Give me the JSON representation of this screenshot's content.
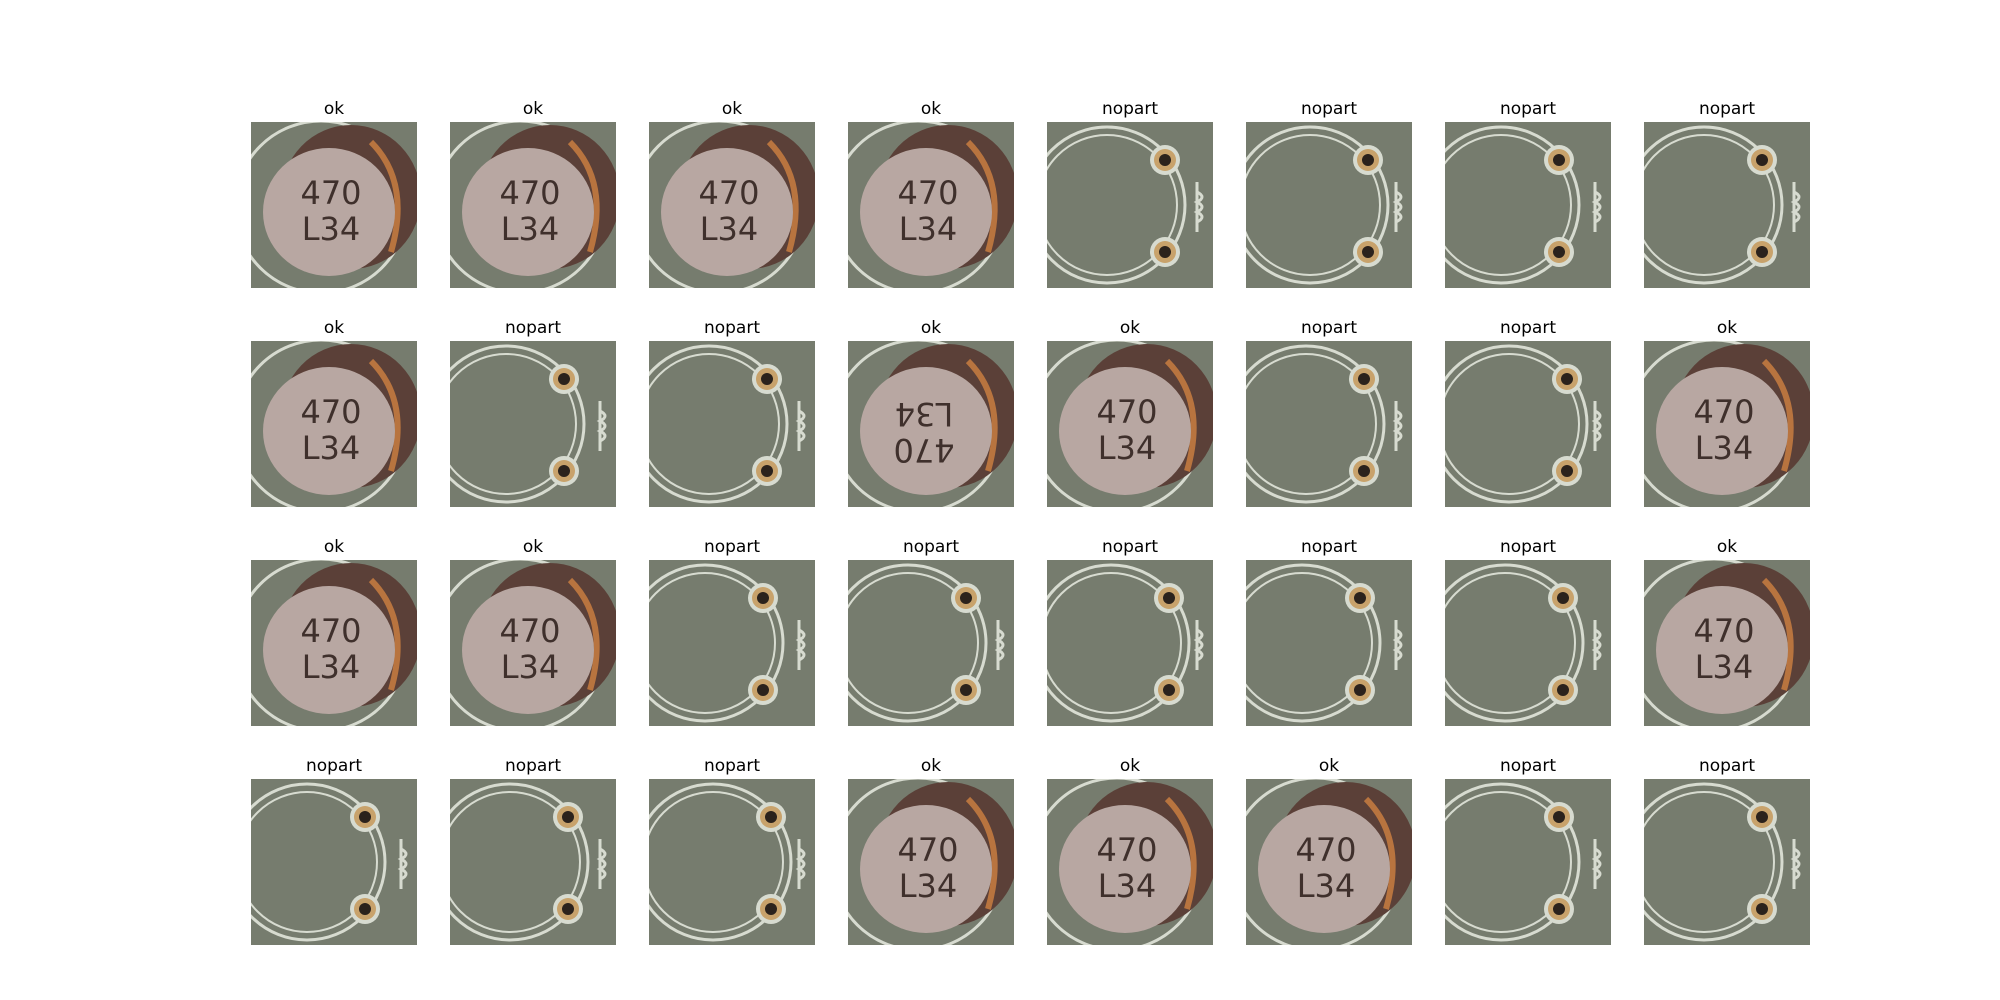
{
  "colors": {
    "board": "#7b8173",
    "board_dark": "#5e6558",
    "silk": "#d7dbd0",
    "cap_top": "#b8a7a2",
    "cap_shadow": "#5b4038",
    "copper": "#b8743f",
    "pad_ring": "#c8a26b",
    "pad_hole": "#2b221c",
    "marking": "#3f302c"
  },
  "marking": {
    "line1": "470",
    "line2": "L34"
  },
  "tiles": [
    {
      "label": "ok"
    },
    {
      "label": "ok"
    },
    {
      "label": "ok"
    },
    {
      "label": "ok"
    },
    {
      "label": "nopart"
    },
    {
      "label": "nopart"
    },
    {
      "label": "nopart"
    },
    {
      "label": "nopart"
    },
    {
      "label": "ok"
    },
    {
      "label": "nopart"
    },
    {
      "label": "nopart"
    },
    {
      "label": "ok",
      "rotated": true
    },
    {
      "label": "ok"
    },
    {
      "label": "nopart"
    },
    {
      "label": "nopart"
    },
    {
      "label": "ok"
    },
    {
      "label": "ok"
    },
    {
      "label": "ok"
    },
    {
      "label": "nopart"
    },
    {
      "label": "nopart"
    },
    {
      "label": "nopart"
    },
    {
      "label": "nopart"
    },
    {
      "label": "nopart"
    },
    {
      "label": "ok"
    },
    {
      "label": "nopart"
    },
    {
      "label": "nopart"
    },
    {
      "label": "nopart"
    },
    {
      "label": "ok"
    },
    {
      "label": "ok"
    },
    {
      "label": "ok"
    },
    {
      "label": "nopart"
    },
    {
      "label": "nopart"
    }
  ]
}
